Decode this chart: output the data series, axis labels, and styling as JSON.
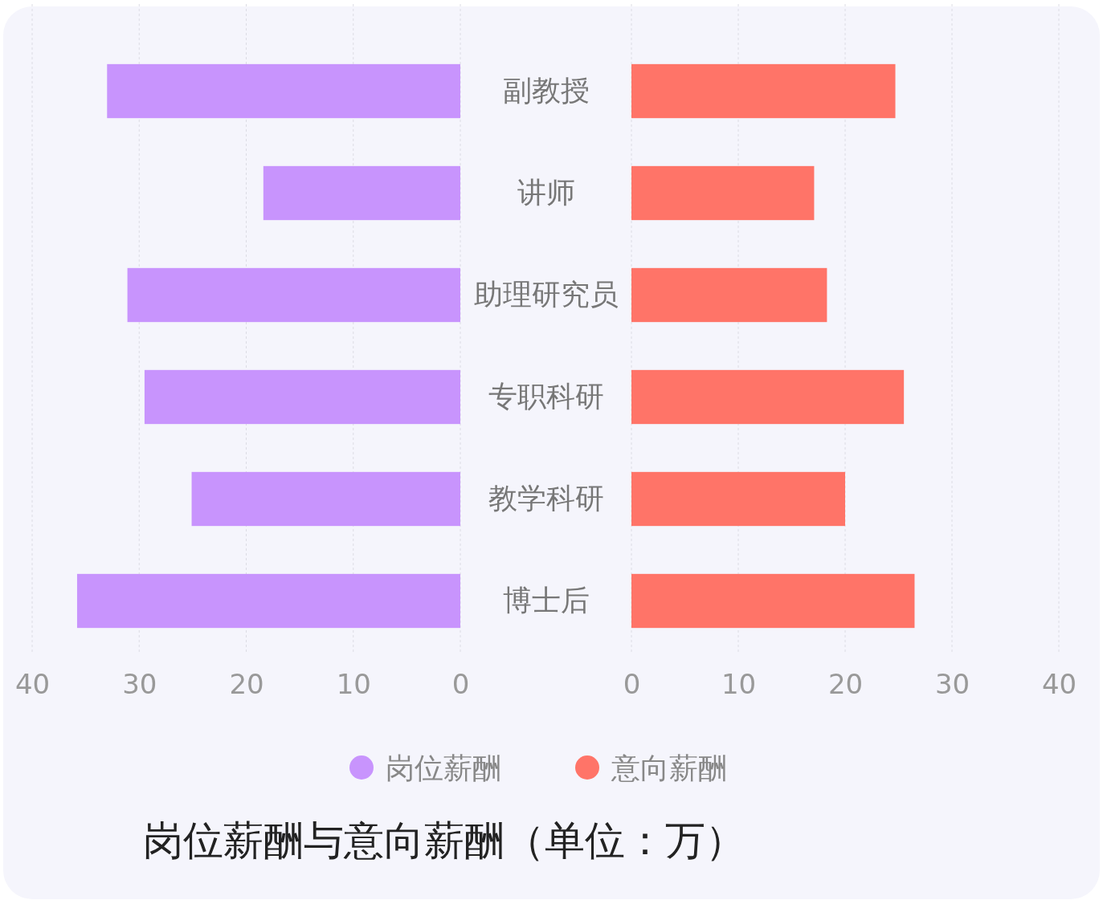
{
  "chart_data": [
    {
      "type": "bar",
      "orientation": "horizontal",
      "title": "岗位薪酬与意向薪酬（单位：万）",
      "categories": [
        null,
        null,
        null,
        null,
        null,
        null
      ],
      "series": [
        {
          "name": "岗位薪酬",
          "color": "#c894fd",
          "values": [
            33.0,
            18.4,
            31.1,
            29.5,
            25.1,
            35.8
          ]
        }
      ],
      "xlim": [
        40,
        0
      ],
      "xticks": [
        40,
        30,
        20,
        10,
        0
      ],
      "grid": "x",
      "legend": "bottom"
    },
    {
      "type": "bar",
      "orientation": "horizontal",
      "categories": [
        "副教授",
        "讲师",
        "助理研究员",
        "专职科研",
        "教学科研",
        "博士后"
      ],
      "series": [
        {
          "name": "意向薪酬",
          "color": "#ff7468",
          "values": [
            24.7,
            17.1,
            18.3,
            25.5,
            20.0,
            26.5
          ]
        }
      ],
      "xlim": [
        0,
        40
      ],
      "xticks": [
        0,
        10,
        20,
        30,
        40
      ],
      "grid": "x",
      "legend": "bottom"
    }
  ]
}
